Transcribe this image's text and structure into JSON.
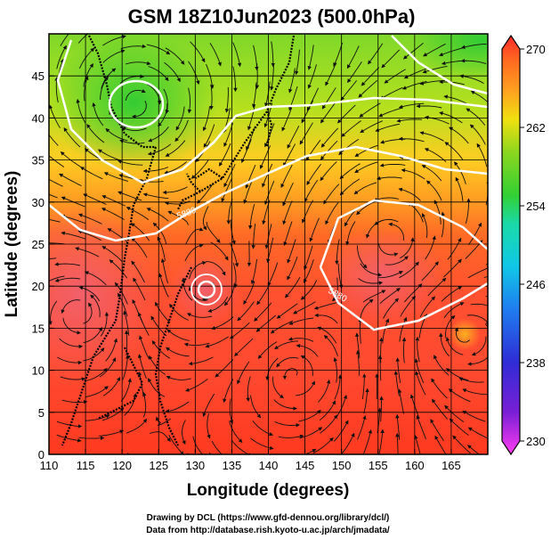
{
  "title": "GSM 18Z10Jun2023 (500.0hPa)",
  "axes": {
    "x_label": "Longitude (degrees)",
    "y_label": "Latitude  (degrees)",
    "x_ticks": [
      "110",
      "115",
      "120",
      "125",
      "130",
      "135",
      "140",
      "145",
      "150",
      "155",
      "160",
      "165"
    ],
    "y_ticks": [
      "0",
      "5",
      "10",
      "15",
      "20",
      "25",
      "30",
      "35",
      "40",
      "45"
    ],
    "x_range": [
      110,
      170
    ],
    "y_range": [
      0,
      50
    ]
  },
  "colorbar": {
    "ticks": [
      "270",
      "262",
      "254",
      "246",
      "238",
      "230"
    ],
    "range": [
      230,
      270
    ],
    "colors": [
      "#ff3cf0",
      "#7a1fd6",
      "#2f2cd6",
      "#1f7ff0",
      "#10c8e6",
      "#1ad9a8",
      "#33d033",
      "#8ad61e",
      "#f0e010",
      "#ffa020",
      "#ff6a20",
      "#ff2a2a"
    ]
  },
  "contour_labels": [
    "5880",
    "5880"
  ],
  "credits": {
    "line1": "Drawing by DCL (https://www.gfd-dennou.org/library/dcl/)",
    "line2": "Data from http://database.rish.kyoto-u.ac.jp/arch/jmadata/"
  }
}
